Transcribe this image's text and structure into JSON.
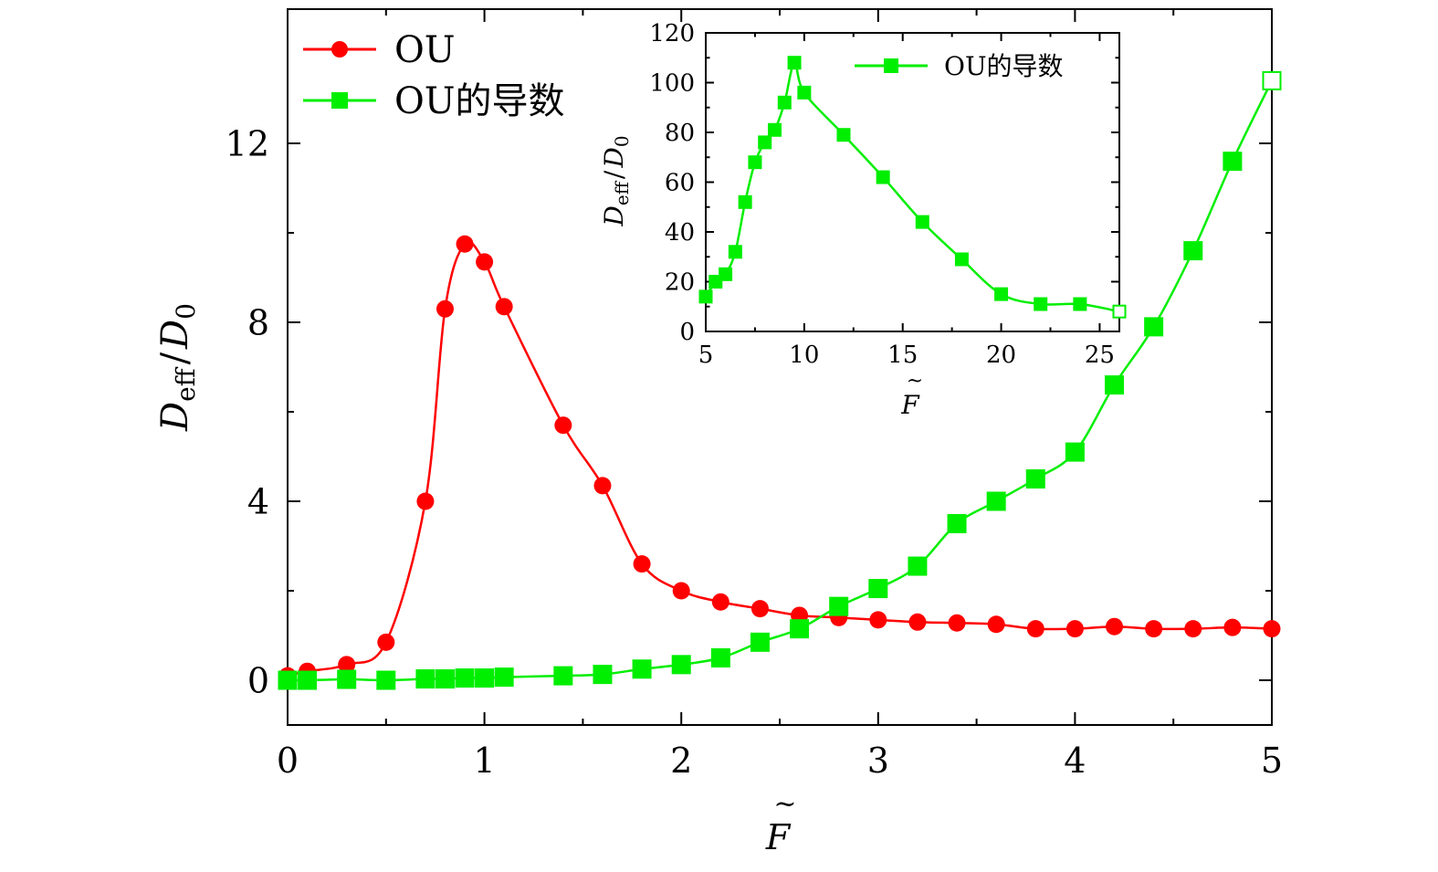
{
  "chart_data": [
    {
      "type": "line",
      "xlabel": "F̃",
      "ylabel": "D_eff / D_0",
      "xlim": [
        0,
        5
      ],
      "ylim": [
        -1,
        15
      ],
      "xticks": [
        0,
        1,
        2,
        3,
        4,
        5
      ],
      "yticks": [
        0,
        4,
        8,
        12
      ],
      "legend": "top-left",
      "grid": false,
      "series": [
        {
          "name": "OU",
          "color": "#ff0000",
          "marker": "circle",
          "x": [
            0,
            0.1,
            0.3,
            0.5,
            0.7,
            0.8,
            0.9,
            1.0,
            1.1,
            1.4,
            1.6,
            1.8,
            2.0,
            2.2,
            2.4,
            2.6,
            2.8,
            3.0,
            3.2,
            3.4,
            3.6,
            3.8,
            4.0,
            4.2,
            4.4,
            4.6,
            4.8,
            5.0
          ],
          "y": [
            0.1,
            0.2,
            0.35,
            0.85,
            4.0,
            8.3,
            9.75,
            9.35,
            8.35,
            5.7,
            4.35,
            2.6,
            2.0,
            1.75,
            1.6,
            1.45,
            1.4,
            1.35,
            1.3,
            1.28,
            1.25,
            1.15,
            1.15,
            1.2,
            1.15,
            1.15,
            1.18,
            1.15
          ]
        },
        {
          "name": "OU的导数",
          "color": "#00ee00",
          "marker": "square",
          "x": [
            0,
            0.1,
            0.3,
            0.5,
            0.7,
            0.8,
            0.9,
            1.0,
            1.1,
            1.4,
            1.6,
            1.8,
            2.0,
            2.2,
            2.4,
            2.6,
            2.8,
            3.0,
            3.2,
            3.4,
            3.6,
            3.8,
            4.0,
            4.2,
            4.4,
            4.6,
            4.8,
            5.0
          ],
          "y": [
            0.0,
            0.0,
            0.02,
            0.0,
            0.03,
            0.03,
            0.05,
            0.05,
            0.07,
            0.1,
            0.13,
            0.25,
            0.35,
            0.5,
            0.85,
            1.15,
            1.65,
            2.05,
            2.55,
            3.5,
            4.0,
            4.5,
            5.1,
            6.6,
            7.9,
            9.6,
            11.6,
            13.4
          ]
        }
      ]
    },
    {
      "type": "line",
      "xlabel": "F̃",
      "ylabel": "D_eff / D_0",
      "xlim": [
        5,
        26
      ],
      "ylim": [
        0,
        120
      ],
      "xticks": [
        5,
        10,
        15,
        20,
        25
      ],
      "yticks": [
        0,
        20,
        40,
        60,
        80,
        100,
        120
      ],
      "legend": "top-right",
      "grid": false,
      "series": [
        {
          "name": "OU的导数",
          "color": "#00ee00",
          "marker": "square",
          "x": [
            5,
            5.5,
            6,
            6.5,
            7,
            7.5,
            8,
            8.5,
            9,
            9.5,
            10,
            12,
            14,
            16,
            18,
            20,
            22,
            24,
            26
          ],
          "y": [
            14,
            20,
            23,
            32,
            52,
            68,
            76,
            81,
            92,
            108,
            96,
            79,
            62,
            44,
            29,
            15,
            11,
            11,
            8
          ]
        }
      ]
    }
  ],
  "labels": {
    "main_x_var": "F",
    "main_x_accent": "~",
    "main_y_var": "D",
    "main_y_sub": "eff",
    "main_y_slash": "/",
    "main_y_var2": "D",
    "main_y_sub2": "0",
    "inset_x_var": "F",
    "inset_x_accent": "~",
    "inset_y_var": "D",
    "inset_y_sub": "eff",
    "inset_y_slash": "/",
    "inset_y_var2": "D",
    "inset_y_sub2": "0"
  }
}
